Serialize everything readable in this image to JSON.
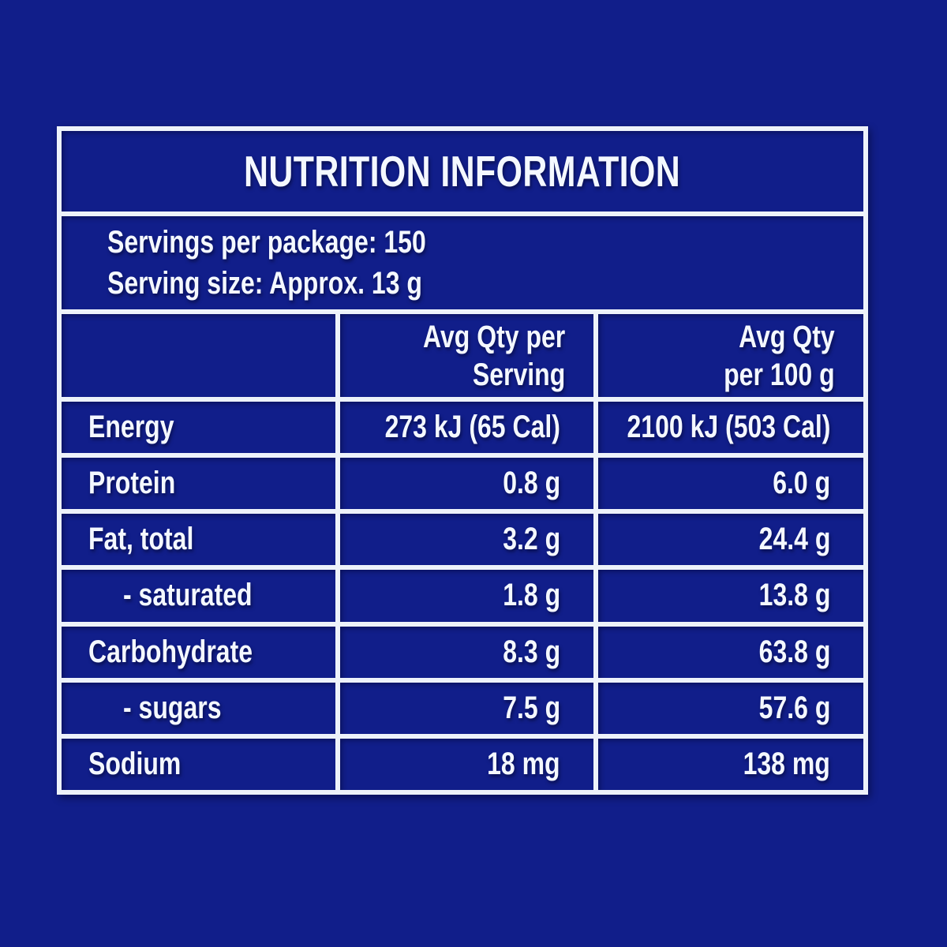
{
  "colors": {
    "background": "#111e8a",
    "grid_line": "#edf2fa",
    "text": "#f4f8ff"
  },
  "title": "NUTRITION INFORMATION",
  "serving_lines": [
    "Servings per package: 150",
    "Serving size: Approx. 13 g"
  ],
  "columns": {
    "serving": [
      "Avg Qty per",
      "Serving"
    ],
    "per_100g": [
      "Avg Qty",
      "per 100 g"
    ]
  },
  "rows": [
    {
      "label": "Energy",
      "per_serving": "273 kJ (65 Cal)",
      "per_100g": "2100 kJ (503 Cal)"
    },
    {
      "label": "Protein",
      "per_serving": "0.8 g",
      "per_100g": "6.0 g"
    },
    {
      "label": "Fat, total",
      "per_serving": "3.2 g",
      "per_100g": "24.4 g"
    },
    {
      "label": "- saturated",
      "per_serving": "1.8 g",
      "per_100g": "13.8 g"
    },
    {
      "label": "Carbohydrate",
      "per_serving": "8.3 g",
      "per_100g": "63.8 g"
    },
    {
      "label": "- sugars",
      "per_serving": "7.5 g",
      "per_100g": "57.6 g"
    },
    {
      "label": "Sodium",
      "per_serving": "18 mg",
      "per_100g": "138 mg"
    }
  ]
}
